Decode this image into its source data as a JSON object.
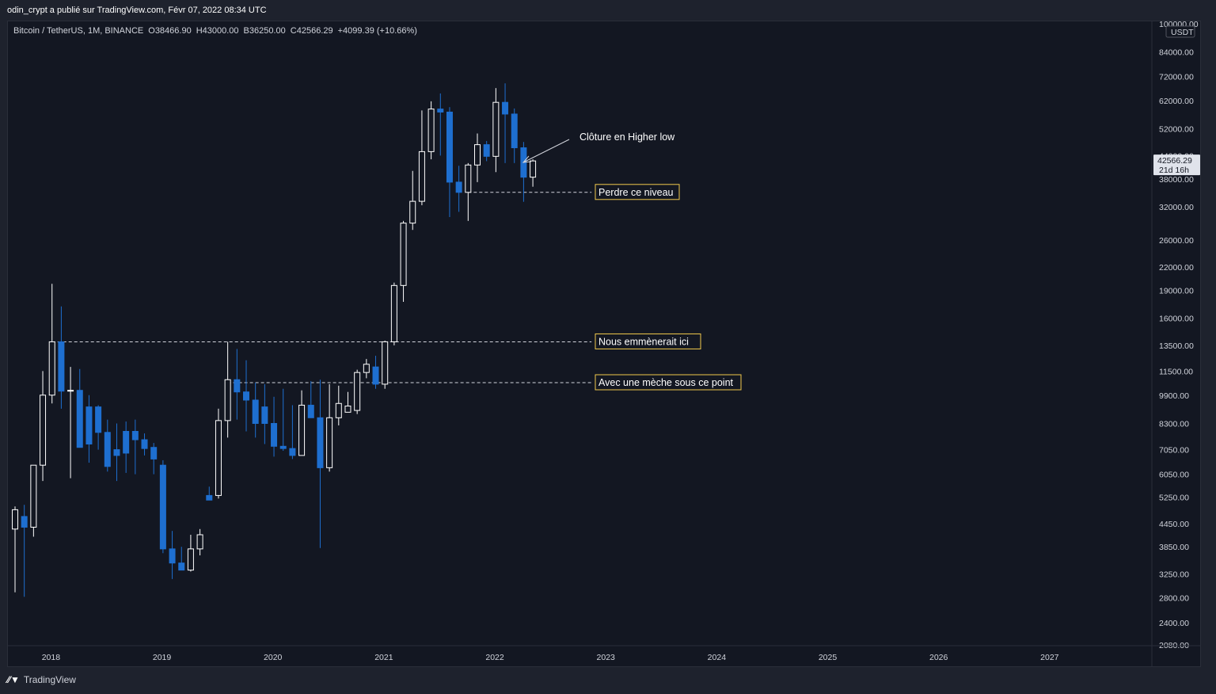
{
  "header": {
    "publisher": "odin_crypt a publié sur TradingView.com, Févr 07, 2022 08:34 UTC"
  },
  "legend": {
    "symbol": "Bitcoin / TetherUS, 1M, BINANCE",
    "open_label": "O",
    "open": "38466.90",
    "high_label": "H",
    "high": "43000.00",
    "low_label": "B",
    "low": "36250.00",
    "close_label": "C",
    "close": "42566.29",
    "change": "+4099.39 (+10.66%)"
  },
  "footer": {
    "brand": "TradingView",
    "logo": "tradingview-logo-icon"
  },
  "colors": {
    "background": "#131722",
    "frame": "#1e222d",
    "up": "#ffffff",
    "down": "#1e6fd0",
    "text": "#d1d4dc",
    "annotation_border": "#f2c94c"
  },
  "chart_data": {
    "type": "candlestick",
    "title": "Bitcoin / TetherUS, 1M, BINANCE",
    "interval": "1M",
    "y_scale": "log",
    "y_unit": "USDT",
    "ylim": [
      2080,
      100000
    ],
    "x_range": [
      "2017-09",
      "2027-12"
    ],
    "grid": false,
    "y_ticks": [
      "100000.00",
      "84000.00",
      "72000.00",
      "62000.00",
      "52000.00",
      "44000.00",
      "38000.00",
      "32000.00",
      "26000.00",
      "22000.00",
      "19000.00",
      "16000.00",
      "13500.00",
      "11500.00",
      "9900.00",
      "8300.00",
      "7050.00",
      "6050.00",
      "5250.00",
      "4450.00",
      "3850.00",
      "3250.00",
      "2800.00",
      "2400.00",
      "2080.00"
    ],
    "x_ticks": [
      "2018",
      "2019",
      "2020",
      "2021",
      "2022",
      "2023",
      "2024",
      "2025",
      "2026",
      "2027"
    ],
    "last_price": "42566.29",
    "last_price_countdown": "21d 16h",
    "candles": [
      {
        "t": "2017-09",
        "o": 4300,
        "h": 4950,
        "l": 2900,
        "c": 4850
      },
      {
        "t": "2017-10",
        "o": 4650,
        "h": 5000,
        "l": 2820,
        "c": 4350
      },
      {
        "t": "2017-11",
        "o": 4350,
        "h": 6400,
        "l": 4100,
        "c": 6400
      },
      {
        "t": "2017-12",
        "o": 6400,
        "h": 11500,
        "l": 5800,
        "c": 9900
      },
      {
        "t": "2018-01",
        "o": 9900,
        "h": 19800,
        "l": 9400,
        "c": 13800
      },
      {
        "t": "2018-02",
        "o": 13800,
        "h": 17200,
        "l": 9100,
        "c": 10150
      },
      {
        "t": "2018-03",
        "o": 10150,
        "h": 11800,
        "l": 5900,
        "c": 10200
      },
      {
        "t": "2018-04",
        "o": 10200,
        "h": 11650,
        "l": 7150,
        "c": 7150
      },
      {
        "t": "2018-05",
        "o": 9200,
        "h": 9900,
        "l": 6500,
        "c": 7300
      },
      {
        "t": "2018-06",
        "o": 9200,
        "h": 9300,
        "l": 7050,
        "c": 7850
      },
      {
        "t": "2018-07",
        "o": 7850,
        "h": 8500,
        "l": 6150,
        "c": 6350
      },
      {
        "t": "2018-08",
        "o": 7050,
        "h": 8300,
        "l": 5800,
        "c": 6800
      },
      {
        "t": "2018-09",
        "o": 7900,
        "h": 8400,
        "l": 6100,
        "c": 6900
      },
      {
        "t": "2018-10",
        "o": 7900,
        "h": 8500,
        "l": 6050,
        "c": 7500
      },
      {
        "t": "2018-11",
        "o": 7500,
        "h": 7800,
        "l": 6800,
        "c": 7100
      },
      {
        "t": "2018-12",
        "o": 7150,
        "h": 7350,
        "l": 6050,
        "c": 6650
      },
      {
        "t": "2019-01",
        "o": 6400,
        "h": 6600,
        "l": 3700,
        "c": 3800
      },
      {
        "t": "2019-02",
        "o": 3800,
        "h": 4250,
        "l": 3150,
        "c": 3480
      },
      {
        "t": "2019-03",
        "o": 3480,
        "h": 3850,
        "l": 3350,
        "c": 3330
      },
      {
        "t": "2019-04",
        "o": 3330,
        "h": 4150,
        "l": 3300,
        "c": 3800
      },
      {
        "t": "2019-05",
        "o": 3800,
        "h": 4300,
        "l": 3650,
        "c": 4150
      },
      {
        "t": "2019-06",
        "o": 5300,
        "h": 5600,
        "l": 5250,
        "c": 5150
      },
      {
        "t": "2019-07",
        "o": 5300,
        "h": 9100,
        "l": 5200,
        "c": 8450
      },
      {
        "t": "2019-08",
        "o": 8450,
        "h": 13800,
        "l": 7600,
        "c": 10900
      },
      {
        "t": "2019-09",
        "o": 10900,
        "h": 13200,
        "l": 8500,
        "c": 10100
      },
      {
        "t": "2019-10",
        "o": 10100,
        "h": 12300,
        "l": 7900,
        "c": 9600
      },
      {
        "t": "2019-11",
        "o": 9600,
        "h": 10700,
        "l": 7600,
        "c": 8300
      },
      {
        "t": "2019-12",
        "o": 9200,
        "h": 10600,
        "l": 7300,
        "c": 8300
      },
      {
        "t": "2020-01",
        "o": 8300,
        "h": 9800,
        "l": 6750,
        "c": 7200
      },
      {
        "t": "2020-02",
        "o": 7200,
        "h": 10300,
        "l": 7000,
        "c": 7100
      },
      {
        "t": "2020-03",
        "o": 7100,
        "h": 9300,
        "l": 6650,
        "c": 6800
      },
      {
        "t": "2020-04",
        "o": 6800,
        "h": 10200,
        "l": 6900,
        "c": 9300
      },
      {
        "t": "2020-05",
        "o": 9300,
        "h": 10800,
        "l": 8600,
        "c": 8600
      },
      {
        "t": "2020-06",
        "o": 8600,
        "h": 10900,
        "l": 3820,
        "c": 6300
      },
      {
        "t": "2020-07",
        "o": 6300,
        "h": 10600,
        "l": 6150,
        "c": 8600
      },
      {
        "t": "2020-08",
        "o": 8600,
        "h": 10500,
        "l": 8200,
        "c": 9400
      },
      {
        "t": "2020-09",
        "o": 8900,
        "h": 10100,
        "l": 8900,
        "c": 9250
      },
      {
        "t": "2020-10",
        "o": 9000,
        "h": 11600,
        "l": 8800,
        "c": 11400
      },
      {
        "t": "2020-11",
        "o": 11400,
        "h": 12400,
        "l": 11000,
        "c": 12000
      },
      {
        "t": "2020-12",
        "o": 11800,
        "h": 12650,
        "l": 10300,
        "c": 10600
      },
      {
        "t": "2021-01",
        "o": 10600,
        "h": 13900,
        "l": 10300,
        "c": 13800
      },
      {
        "t": "2021-02",
        "o": 13800,
        "h": 19950,
        "l": 13500,
        "c": 19600
      },
      {
        "t": "2021-03",
        "o": 19600,
        "h": 29300,
        "l": 17700,
        "c": 28900
      },
      {
        "t": "2021-04",
        "o": 28900,
        "h": 40000,
        "l": 27700,
        "c": 33100
      },
      {
        "t": "2021-05",
        "o": 33100,
        "h": 58300,
        "l": 32300,
        "c": 45100
      },
      {
        "t": "2021-06",
        "o": 45100,
        "h": 61700,
        "l": 43000,
        "c": 58800
      },
      {
        "t": "2021-07",
        "o": 58800,
        "h": 64800,
        "l": 44000,
        "c": 57700
      },
      {
        "t": "2021-08",
        "o": 57700,
        "h": 59500,
        "l": 30000,
        "c": 37300
      },
      {
        "t": "2021-09",
        "o": 37300,
        "h": 41300,
        "l": 31000,
        "c": 35000
      },
      {
        "t": "2021-10",
        "o": 35000,
        "h": 42000,
        "l": 29300,
        "c": 41500
      },
      {
        "t": "2021-11",
        "o": 41500,
        "h": 50500,
        "l": 37300,
        "c": 47100
      },
      {
        "t": "2021-12",
        "o": 47100,
        "h": 48200,
        "l": 42500,
        "c": 43800
      },
      {
        "t": "2022-01",
        "o": 43800,
        "h": 67000,
        "l": 39700,
        "c": 61300
      },
      {
        "t": "2022-02",
        "o": 61300,
        "h": 69000,
        "l": 42000,
        "c": 57000
      },
      {
        "t": "2022-03",
        "o": 57000,
        "h": 59000,
        "l": 42000,
        "c": 46200
      },
      {
        "t": "2022-04",
        "o": 46200,
        "h": 47900,
        "l": 33000,
        "c": 38466.9
      },
      {
        "t": "2022-05",
        "o": 38466.9,
        "h": 43000,
        "l": 36250,
        "c": 42566.29
      }
    ],
    "annotations": [
      {
        "text": "Clôture en Higher low",
        "type": "arrow-label"
      },
      {
        "text": "Perdre ce niveau",
        "type": "boxed-label",
        "level": 35000
      },
      {
        "text": "Nous emmènerait ici",
        "type": "boxed-label",
        "level": 13800
      },
      {
        "text": "Avec une mèche sous ce point",
        "type": "boxed-label",
        "level": 10700
      }
    ]
  }
}
